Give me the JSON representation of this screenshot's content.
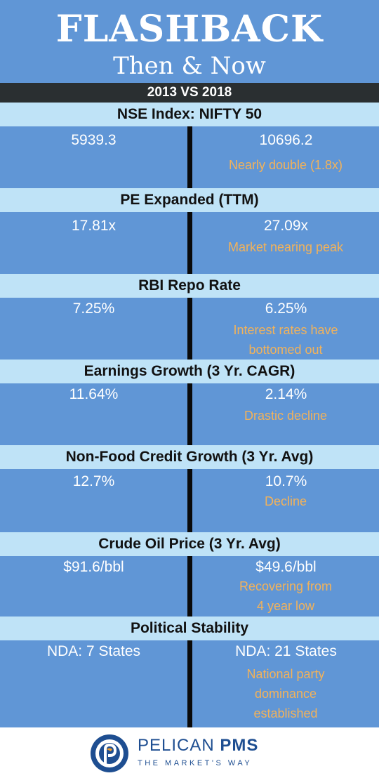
{
  "header": {
    "title": "FLASHBACK",
    "subtitle": "Then & Now"
  },
  "comparison_label": "2013 VS 2018",
  "sections": [
    {
      "heading": "NSE Index: NIFTY 50",
      "left_value": "5939.3",
      "right_value": "10696.2",
      "note_lines": [
        "Nearly double (1.8x)"
      ]
    },
    {
      "heading": "PE Expanded (TTM)",
      "left_value": "17.81x",
      "right_value": "27.09x",
      "note_lines": [
        "Market nearing peak"
      ]
    },
    {
      "heading": "RBI Repo Rate",
      "left_value": "7.25%",
      "right_value": "6.25%",
      "note_lines": [
        "Interest rates have",
        "bottomed out"
      ]
    },
    {
      "heading": "Earnings Growth (3 Yr. CAGR)",
      "left_value": "11.64%",
      "right_value": "2.14%",
      "note_lines": [
        "Drastic decline"
      ]
    },
    {
      "heading": "Non-Food Credit Growth (3 Yr. Avg)",
      "left_value": "12.7%",
      "right_value": "10.7%",
      "note_lines": [
        "Decline"
      ]
    },
    {
      "heading": "Crude Oil Price (3 Yr. Avg)",
      "left_value": "$91.6/bbl",
      "right_value": "$49.6/bbl",
      "note_lines": [
        "Recovering from",
        "4 year low"
      ]
    },
    {
      "heading": "Political Stability",
      "left_value": "NDA: 7 States",
      "right_value": "NDA: 21 States",
      "note_lines": [
        "National party",
        "dominance",
        "established"
      ]
    }
  ],
  "footer": {
    "brand_light": "PELICAN",
    "brand_bold": "PMS",
    "tagline": "THE MARKET'S WAY"
  },
  "colors": {
    "background": "#6096D6",
    "heading_band": "#BFE3F7",
    "note_text": "#F2B25A",
    "dark_bar": "#2A2F31",
    "brand": "#1E4E91",
    "logo_accent": "#F0A030"
  }
}
